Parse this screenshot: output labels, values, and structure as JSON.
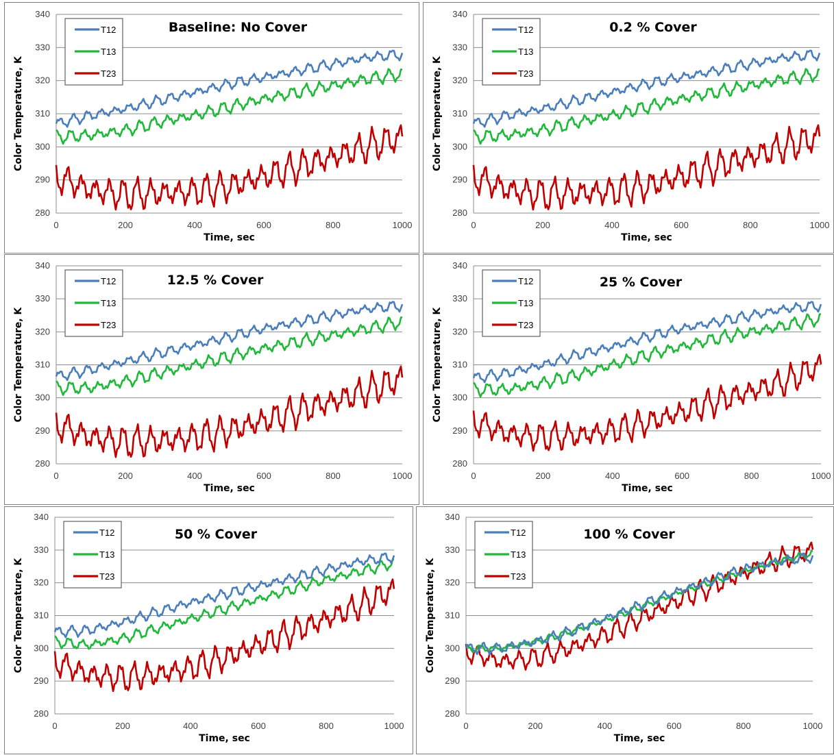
{
  "chart_data": [
    {
      "type": "line",
      "title": "Baseline: No Cover",
      "xlabel": "Time, sec",
      "ylabel": "Color Temperature, K",
      "xlim": [
        0,
        1000
      ],
      "ylim": [
        280,
        340
      ],
      "xticks": [
        0,
        200,
        400,
        600,
        800,
        1000
      ],
      "yticks": [
        280,
        290,
        300,
        310,
        320,
        330,
        340
      ],
      "grid": "horizontal",
      "legend": "top-left",
      "series": [
        {
          "name": "T12",
          "color": "#4a7ebb",
          "x": [
            0,
            100,
            200,
            300,
            400,
            500,
            600,
            700,
            800,
            900,
            1000
          ],
          "y": [
            307,
            309.5,
            311.5,
            314,
            316.5,
            319,
            321,
            323,
            325,
            327,
            328
          ],
          "fluct": 1.5
        },
        {
          "name": "T13",
          "color": "#1fb83a",
          "x": [
            0,
            100,
            200,
            300,
            400,
            500,
            600,
            700,
            800,
            900,
            1000
          ],
          "y": [
            303,
            303.5,
            305,
            307.5,
            309.5,
            312,
            314.5,
            316.5,
            318.5,
            320.5,
            322
          ],
          "fluct": 1.8
        },
        {
          "name": "T23",
          "color": "#c00000",
          "x": [
            0,
            100,
            200,
            300,
            400,
            500,
            600,
            700,
            800,
            900,
            1000
          ],
          "y": [
            291,
            287,
            285.5,
            286,
            286.5,
            288,
            291,
            294,
            297,
            300,
            303
          ],
          "fluct": 4.5
        }
      ]
    },
    {
      "type": "line",
      "title": "0.2  % Cover",
      "xlabel": "Time, sec",
      "ylabel": "Color Temperature, K",
      "xlim": [
        0,
        1000
      ],
      "ylim": [
        280,
        340
      ],
      "xticks": [
        0,
        200,
        400,
        600,
        800,
        1000
      ],
      "yticks": [
        280,
        290,
        300,
        310,
        320,
        330,
        340
      ],
      "grid": "horizontal",
      "legend": "top-left",
      "series": [
        {
          "name": "T12",
          "color": "#4a7ebb",
          "x": [
            0,
            100,
            200,
            300,
            400,
            500,
            600,
            700,
            800,
            900,
            1000
          ],
          "y": [
            307,
            309.5,
            311.5,
            314,
            316.5,
            319,
            321,
            323,
            325,
            327,
            328
          ],
          "fluct": 1.5
        },
        {
          "name": "T13",
          "color": "#1fb83a",
          "x": [
            0,
            100,
            200,
            300,
            400,
            500,
            600,
            700,
            800,
            900,
            1000
          ],
          "y": [
            303,
            303.5,
            305,
            307.5,
            309.5,
            312,
            314.5,
            316.5,
            318.5,
            320.5,
            322
          ],
          "fluct": 1.8
        },
        {
          "name": "T23",
          "color": "#c00000",
          "x": [
            0,
            100,
            200,
            300,
            400,
            500,
            600,
            700,
            800,
            900,
            1000
          ],
          "y": [
            291,
            287,
            285.5,
            286,
            286.5,
            288,
            291,
            294,
            297,
            300,
            303
          ],
          "fluct": 4.5
        }
      ]
    },
    {
      "type": "line",
      "title": "12.5 % Cover",
      "xlabel": "Time, sec",
      "ylabel": "Color Temperature, K",
      "xlim": [
        0,
        1000
      ],
      "ylim": [
        280,
        340
      ],
      "xticks": [
        0,
        200,
        400,
        600,
        800,
        1000
      ],
      "yticks": [
        280,
        290,
        300,
        310,
        320,
        330,
        340
      ],
      "grid": "horizontal",
      "legend": "top-left",
      "series": [
        {
          "name": "T12",
          "color": "#4a7ebb",
          "x": [
            0,
            100,
            200,
            300,
            400,
            500,
            600,
            700,
            800,
            900,
            1000
          ],
          "y": [
            306.5,
            308.5,
            311,
            313.5,
            316,
            318.5,
            321,
            323,
            325,
            327,
            328
          ],
          "fluct": 1.5
        },
        {
          "name": "T13",
          "color": "#1fb83a",
          "x": [
            0,
            100,
            200,
            300,
            400,
            500,
            600,
            700,
            800,
            900,
            1000
          ],
          "y": [
            303,
            303,
            305,
            307.5,
            310,
            312.5,
            315,
            317,
            319,
            321,
            323
          ],
          "fluct": 1.8
        },
        {
          "name": "T23",
          "color": "#c00000",
          "x": [
            0,
            100,
            200,
            300,
            400,
            500,
            600,
            700,
            800,
            900,
            1000
          ],
          "y": [
            292,
            288,
            286.5,
            287,
            288,
            290,
            293,
            296,
            299,
            302,
            306
          ],
          "fluct": 4.5
        }
      ]
    },
    {
      "type": "line",
      "title": "25 % Cover",
      "xlabel": "Time, sec",
      "ylabel": "Color Temperature, K",
      "xlim": [
        0,
        1000
      ],
      "ylim": [
        280,
        340
      ],
      "xticks": [
        0,
        200,
        400,
        600,
        800,
        1000
      ],
      "yticks": [
        280,
        290,
        300,
        310,
        320,
        330,
        340
      ],
      "grid": "horizontal",
      "legend": "top-left",
      "series": [
        {
          "name": "T12",
          "color": "#4a7ebb",
          "x": [
            0,
            100,
            200,
            300,
            400,
            500,
            600,
            700,
            800,
            900,
            1000
          ],
          "y": [
            306,
            307.5,
            310,
            313,
            315.5,
            318.5,
            321,
            323,
            325,
            327,
            328
          ],
          "fluct": 1.5
        },
        {
          "name": "T13",
          "color": "#1fb83a",
          "x": [
            0,
            100,
            200,
            300,
            400,
            500,
            600,
            700,
            800,
            900,
            1000
          ],
          "y": [
            302.5,
            302.5,
            304.5,
            307,
            310,
            313,
            315.5,
            318,
            320,
            322,
            324
          ],
          "fluct": 1.8
        },
        {
          "name": "T23",
          "color": "#c00000",
          "x": [
            0,
            100,
            200,
            300,
            400,
            500,
            600,
            700,
            800,
            900,
            1000
          ],
          "y": [
            293,
            289,
            288,
            288.5,
            290,
            292.5,
            295.5,
            299,
            302,
            305,
            310
          ],
          "fluct": 4
        }
      ]
    },
    {
      "type": "line",
      "title": "50 % Cover",
      "xlabel": "Time, sec",
      "ylabel": "Color Temperature, K",
      "xlim": [
        0,
        1000
      ],
      "ylim": [
        280,
        340
      ],
      "xticks": [
        0,
        200,
        400,
        600,
        800,
        1000
      ],
      "yticks": [
        280,
        290,
        300,
        310,
        320,
        330,
        340
      ],
      "grid": "horizontal",
      "legend": "top-left",
      "series": [
        {
          "name": "T12",
          "color": "#4a7ebb",
          "x": [
            0,
            100,
            200,
            300,
            400,
            500,
            600,
            700,
            800,
            900,
            1000
          ],
          "y": [
            305,
            305.5,
            308,
            311,
            314,
            316.5,
            319,
            321.5,
            324,
            326.5,
            328
          ],
          "fluct": 1.5
        },
        {
          "name": "T13",
          "color": "#1fb83a",
          "x": [
            0,
            100,
            200,
            300,
            400,
            500,
            600,
            700,
            800,
            900,
            1000
          ],
          "y": [
            302,
            301,
            303,
            306,
            309,
            312,
            315,
            318,
            321,
            323.5,
            326
          ],
          "fluct": 1.5
        },
        {
          "name": "T23",
          "color": "#c00000",
          "x": [
            0,
            100,
            200,
            300,
            400,
            500,
            600,
            700,
            800,
            900,
            1000
          ],
          "y": [
            296,
            292,
            291,
            292,
            294,
            297,
            301,
            305,
            309,
            313,
            318
          ],
          "fluct": 4
        }
      ]
    },
    {
      "type": "line",
      "title": "100 % Cover",
      "xlabel": "Time, sec",
      "ylabel": "Color Temperature, K",
      "xlim": [
        0,
        1000
      ],
      "ylim": [
        280,
        340
      ],
      "xticks": [
        0,
        200,
        400,
        600,
        800,
        1000
      ],
      "yticks": [
        280,
        290,
        300,
        310,
        320,
        330,
        340
      ],
      "grid": "horizontal",
      "legend": "top-left",
      "series": [
        {
          "name": "T12",
          "color": "#4a7ebb",
          "x": [
            0,
            100,
            200,
            300,
            400,
            500,
            600,
            700,
            800,
            900,
            1000
          ],
          "y": [
            300,
            300,
            302,
            305,
            309,
            313,
            317,
            320.5,
            324,
            326.5,
            328
          ],
          "fluct": 1.5
        },
        {
          "name": "T13",
          "color": "#1fb83a",
          "x": [
            0,
            100,
            200,
            300,
            400,
            500,
            600,
            700,
            800,
            900,
            1000
          ],
          "y": [
            300,
            300,
            302,
            305,
            308.5,
            312.5,
            316.5,
            320,
            323.5,
            326.5,
            329
          ],
          "fluct": 1
        },
        {
          "name": "T23",
          "color": "#c00000",
          "x": [
            0,
            100,
            200,
            300,
            400,
            500,
            600,
            700,
            800,
            900,
            1000
          ],
          "y": [
            299,
            296,
            297,
            300,
            304,
            309,
            314,
            318.5,
            323,
            327,
            330
          ],
          "fluct": 3
        }
      ]
    }
  ]
}
